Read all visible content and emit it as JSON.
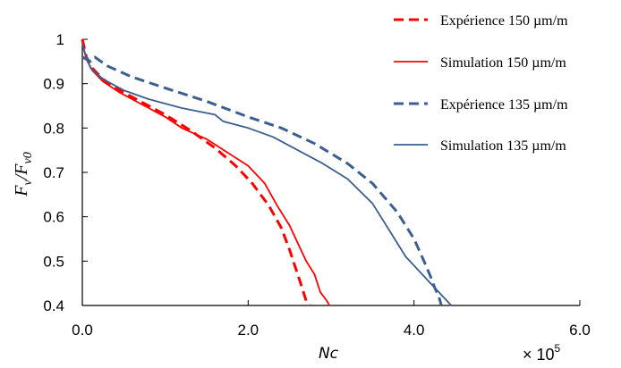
{
  "chart_data": {
    "type": "line",
    "xlabel": "Nc",
    "ylabel_main": "F",
    "ylabel_sub_v": "v",
    "ylabel_slash": "/",
    "ylabel_sub_v0": "v0",
    "x_multiplier_base": "× 10",
    "x_multiplier_exp": "5",
    "xlim": [
      0,
      6
    ],
    "ylim": [
      0.4,
      1.0
    ],
    "x_ticks": [
      "0.0",
      "2.0",
      "4.0",
      "6.0"
    ],
    "x_tick_values": [
      0,
      2,
      4,
      6
    ],
    "y_ticks": [
      "0.4",
      "0.5",
      "0.6",
      "0.7",
      "0.8",
      "0.9",
      "1"
    ],
    "y_tick_values": [
      0.4,
      0.5,
      0.6,
      0.7,
      0.8,
      0.9,
      1.0
    ],
    "grid": false,
    "legend_position": "top-right",
    "series": [
      {
        "name": "Expérience 150 µm/m",
        "color": "#ff0000",
        "dash": true,
        "x": [
          0.0,
          0.05,
          0.12,
          0.25,
          0.45,
          0.7,
          1.0,
          1.3,
          1.6,
          1.85,
          2.05,
          2.25,
          2.4,
          2.5,
          2.58,
          2.65,
          2.7,
          2.74
        ],
        "y": [
          1.0,
          0.96,
          0.935,
          0.91,
          0.885,
          0.86,
          0.83,
          0.795,
          0.755,
          0.715,
          0.675,
          0.625,
          0.575,
          0.525,
          0.48,
          0.44,
          0.41,
          0.4
        ]
      },
      {
        "name": "Simulation 150 µm/m",
        "color": "#ff0000",
        "dash": false,
        "x": [
          0.0,
          0.05,
          0.12,
          0.25,
          0.45,
          0.7,
          1.0,
          1.2,
          1.5,
          1.75,
          2.0,
          2.2,
          2.35,
          2.5,
          2.6,
          2.7,
          2.8,
          2.87,
          2.95,
          2.98
        ],
        "y": [
          0.99,
          0.955,
          0.93,
          0.905,
          0.88,
          0.855,
          0.825,
          0.8,
          0.775,
          0.745,
          0.715,
          0.675,
          0.625,
          0.58,
          0.54,
          0.5,
          0.47,
          0.43,
          0.41,
          0.4
        ]
      },
      {
        "name": "Expérience 135 µm/m",
        "color": "#3b5f91",
        "dash": true,
        "x": [
          0.0,
          0.1,
          0.15,
          0.3,
          0.6,
          1.0,
          1.5,
          2.0,
          2.4,
          2.8,
          3.2,
          3.5,
          3.8,
          4.0,
          4.12,
          4.2,
          4.25,
          4.3,
          4.33
        ],
        "y": [
          0.96,
          0.95,
          0.96,
          0.94,
          0.915,
          0.89,
          0.86,
          0.825,
          0.8,
          0.765,
          0.72,
          0.675,
          0.61,
          0.55,
          0.5,
          0.465,
          0.44,
          0.42,
          0.4
        ]
      },
      {
        "name": "Simulation 135 µm/m",
        "color": "#3b5f91",
        "dash": false,
        "x": [
          0.0,
          0.03,
          0.1,
          0.25,
          0.5,
          0.8,
          1.2,
          1.6,
          1.7,
          2.0,
          2.3,
          2.6,
          2.9,
          3.2,
          3.5,
          3.7,
          3.9,
          4.05,
          4.2,
          4.3,
          4.35,
          4.45
        ],
        "y": [
          0.99,
          0.97,
          0.935,
          0.91,
          0.885,
          0.865,
          0.845,
          0.83,
          0.815,
          0.8,
          0.78,
          0.75,
          0.72,
          0.685,
          0.63,
          0.57,
          0.51,
          0.48,
          0.45,
          0.43,
          0.42,
          0.4
        ]
      }
    ]
  }
}
